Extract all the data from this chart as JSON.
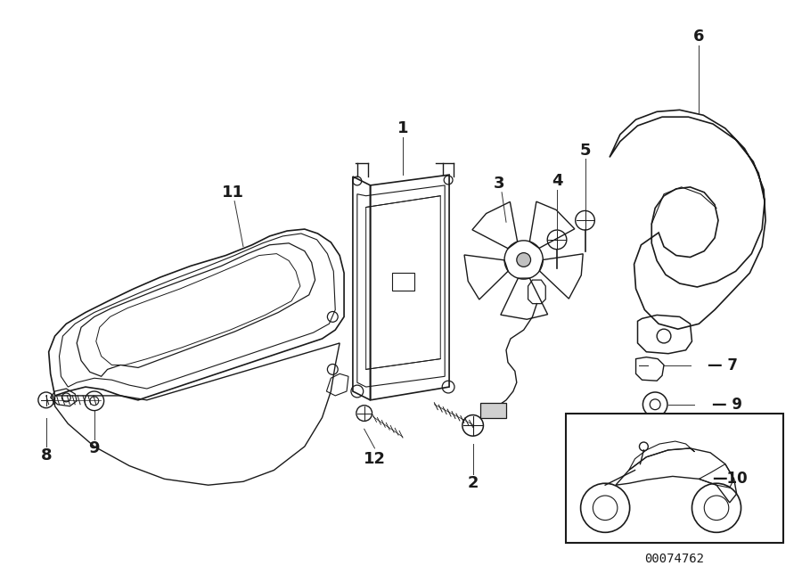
{
  "bg_color": "#ffffff",
  "line_color": "#1a1a1a",
  "fig_width": 9.0,
  "fig_height": 6.35,
  "dpi": 100,
  "diagram_code": "00074762"
}
